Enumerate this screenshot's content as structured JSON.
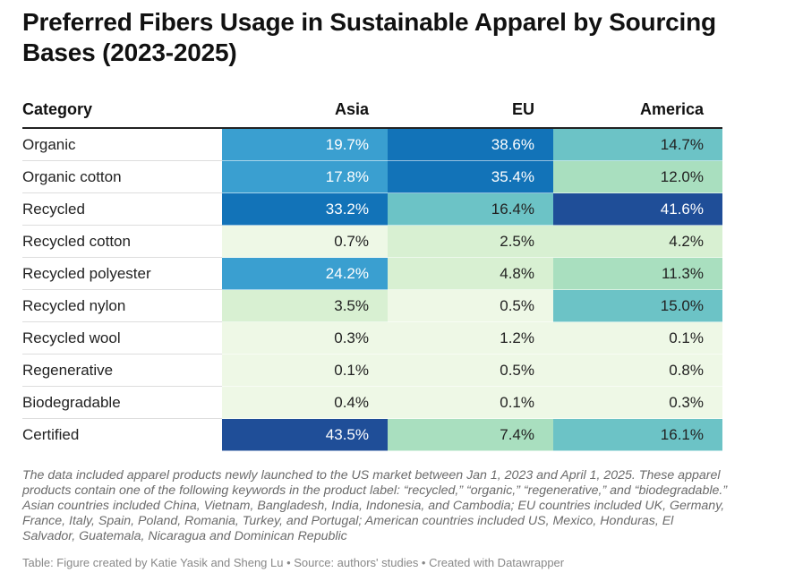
{
  "title": "Preferred Fibers Usage in Sustainable Apparel by Sourcing Bases (2023-2025)",
  "note": "The data included apparel products newly launched to the US market between Jan 1, 2023 and April 1, 2025. These apparel products contain one of the following keywords in the product label: “recycled,” “organic,” “regenerative,” and “biodegradable.” Asian countries included China, Vietnam, Bangladesh, India, Indonesia, and Cambodia; EU countries included UK, Germany, France, Italy, Spain, Poland, Romania, Turkey, and Portugal; American countries included US, Mexico, Honduras, El Salvador, Guatemala, Nicaragua and Dominican Republic",
  "source": "Table: Figure created by Katie Yasik and Sheng Lu • Source: authors' studies • Created with Datawrapper",
  "colors": {
    "scale": [
      "#eef8e6",
      "#d8f0d2",
      "#a9dfbf",
      "#6cc3c6",
      "#3a9fd0",
      "#1273b8",
      "#1f4e98"
    ],
    "text_dark": "#222222",
    "text_light": "#ffffff"
  },
  "chart_data": {
    "type": "heatmap",
    "header": [
      "Category",
      "Asia",
      "EU",
      "America"
    ],
    "columns": [
      "Asia",
      "EU",
      "America"
    ],
    "value_range": [
      0,
      45
    ],
    "unit": "%",
    "rows": [
      {
        "category": "Organic",
        "values": [
          19.7,
          38.6,
          14.7
        ],
        "labels": [
          "19.7%",
          "38.6%",
          "14.7%"
        ]
      },
      {
        "category": "Organic cotton",
        "values": [
          17.8,
          35.4,
          12.0
        ],
        "labels": [
          "17.8%",
          "35.4%",
          "12.0%"
        ]
      },
      {
        "category": "Recycled",
        "values": [
          33.2,
          16.4,
          41.6
        ],
        "labels": [
          "33.2%",
          "16.4%",
          "41.6%"
        ]
      },
      {
        "category": "Recycled cotton",
        "values": [
          0.7,
          2.5,
          4.2
        ],
        "labels": [
          "0.7%",
          "2.5%",
          "4.2%"
        ]
      },
      {
        "category": "Recycled polyester",
        "values": [
          24.2,
          4.8,
          11.3
        ],
        "labels": [
          "24.2%",
          "4.8%",
          "11.3%"
        ]
      },
      {
        "category": "Recycled nylon",
        "values": [
          3.5,
          0.5,
          15.0
        ],
        "labels": [
          "3.5%",
          "0.5%",
          "15.0%"
        ]
      },
      {
        "category": "Recycled wool",
        "values": [
          0.3,
          1.2,
          0.1
        ],
        "labels": [
          "0.3%",
          "1.2%",
          "0.1%"
        ]
      },
      {
        "category": "Regenerative",
        "values": [
          0.1,
          0.5,
          0.8
        ],
        "labels": [
          "0.1%",
          "0.5%",
          "0.8%"
        ]
      },
      {
        "category": "Biodegradable",
        "values": [
          0.4,
          0.1,
          0.3
        ],
        "labels": [
          "0.4%",
          "0.1%",
          "0.3%"
        ]
      },
      {
        "category": "Certified",
        "values": [
          43.5,
          7.4,
          16.1
        ],
        "labels": [
          "43.5%",
          "7.4%",
          "16.1%"
        ]
      }
    ]
  }
}
